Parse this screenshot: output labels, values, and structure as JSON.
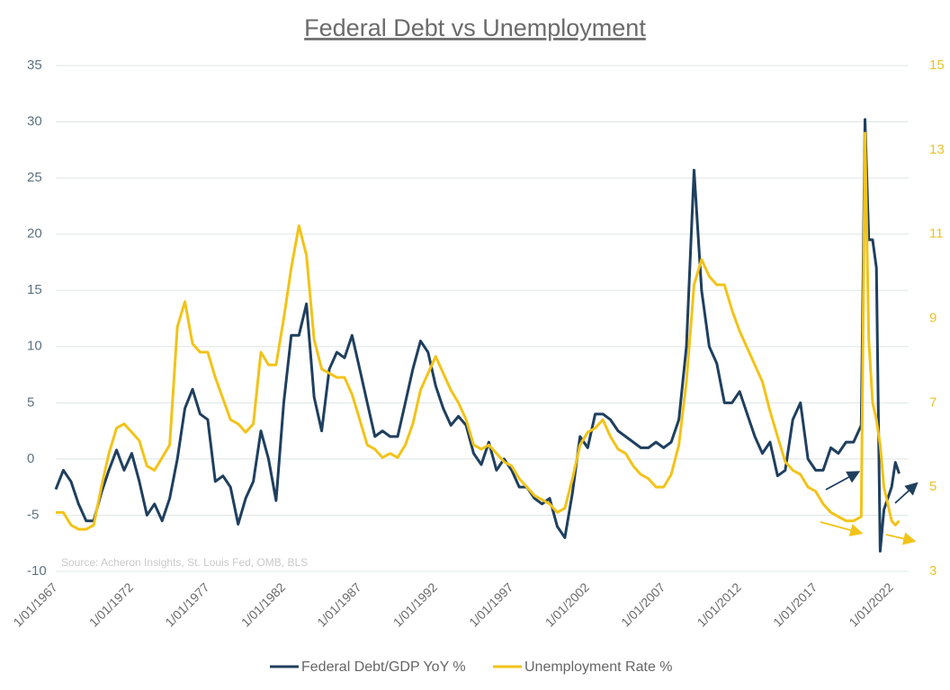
{
  "chart_data": {
    "type": "line",
    "title": "Federal Debt vs Unemployment",
    "annotation": "Source: Acheron Insights, St. Louis Fed, OMB, BLS",
    "x": [
      "1967-01-01",
      "1967-07-01",
      "1968-01-01",
      "1968-07-01",
      "1969-01-01",
      "1969-07-01",
      "1970-01-01",
      "1970-07-01",
      "1971-01-01",
      "1971-07-01",
      "1972-01-01",
      "1972-07-01",
      "1973-01-01",
      "1973-07-01",
      "1974-01-01",
      "1974-07-01",
      "1975-01-01",
      "1975-07-01",
      "1976-01-01",
      "1976-07-01",
      "1977-01-01",
      "1977-07-01",
      "1978-01-01",
      "1978-07-01",
      "1979-01-01",
      "1979-07-01",
      "1980-01-01",
      "1980-07-01",
      "1981-01-01",
      "1981-07-01",
      "1982-01-01",
      "1982-07-01",
      "1983-01-01",
      "1983-07-01",
      "1984-01-01",
      "1984-07-01",
      "1985-01-01",
      "1985-07-01",
      "1986-01-01",
      "1986-07-01",
      "1987-01-01",
      "1987-07-01",
      "1988-01-01",
      "1988-07-01",
      "1989-01-01",
      "1989-07-01",
      "1990-01-01",
      "1990-07-01",
      "1991-01-01",
      "1991-07-01",
      "1992-01-01",
      "1992-07-01",
      "1993-01-01",
      "1993-07-01",
      "1994-01-01",
      "1994-07-01",
      "1995-01-01",
      "1995-07-01",
      "1996-01-01",
      "1996-07-01",
      "1997-01-01",
      "1997-07-01",
      "1998-01-01",
      "1998-07-01",
      "1999-01-01",
      "1999-07-01",
      "2000-01-01",
      "2000-07-01",
      "2001-01-01",
      "2001-07-01",
      "2002-01-01",
      "2002-07-01",
      "2003-01-01",
      "2003-07-01",
      "2004-01-01",
      "2004-07-01",
      "2005-01-01",
      "2005-07-01",
      "2006-01-01",
      "2006-07-01",
      "2007-01-01",
      "2007-07-01",
      "2008-01-01",
      "2008-07-01",
      "2009-01-01",
      "2009-07-01",
      "2010-01-01",
      "2010-07-01",
      "2011-01-01",
      "2011-07-01",
      "2012-01-01",
      "2012-07-01",
      "2013-01-01",
      "2013-07-01",
      "2014-01-01",
      "2014-07-01",
      "2015-01-01",
      "2015-07-01",
      "2016-01-01",
      "2016-07-01",
      "2017-01-01",
      "2017-07-01",
      "2018-01-01",
      "2018-07-01",
      "2019-01-01",
      "2019-07-01",
      "2020-01-01",
      "2020-04-01",
      "2020-07-01",
      "2020-10-01",
      "2021-01-01",
      "2021-04-01",
      "2021-07-01",
      "2022-01-01",
      "2022-04-01",
      "2022-07-01"
    ],
    "series": [
      {
        "name": "Federal Debt/GDP YoY %",
        "color": "#1f3f5f",
        "axis": "y",
        "values": [
          -2.7,
          -1,
          -2,
          -4,
          -5.5,
          -5.5,
          -3,
          -1,
          0.8,
          -1,
          0.5,
          -2,
          -5,
          -4,
          -5.5,
          -3.5,
          0,
          4.5,
          6.2,
          4,
          3.5,
          -2,
          -1.5,
          -2.5,
          -5.8,
          -3.5,
          -2,
          2.5,
          0,
          -3.7,
          5,
          11,
          11,
          13.8,
          5.5,
          2.5,
          8,
          9.5,
          9,
          11,
          8,
          5,
          2,
          2.5,
          2,
          2,
          5,
          8,
          10.5,
          9.5,
          6.5,
          4.5,
          3,
          3.8,
          3,
          0.5,
          -0.5,
          1.5,
          -1,
          0,
          -1,
          -2.5,
          -2.5,
          -3.5,
          -4,
          -3.5,
          -6,
          -7,
          -3,
          2,
          1,
          4,
          4,
          3.5,
          2.5,
          2,
          1.5,
          1,
          1,
          1.5,
          1,
          1.5,
          3.5,
          10,
          25.7,
          15,
          10,
          8.5,
          5,
          5,
          6,
          4,
          2,
          0.5,
          1.5,
          -1.5,
          -1,
          3.5,
          5,
          0,
          -1,
          -1,
          1,
          0.5,
          1.5,
          1.5,
          3,
          30.2,
          19.5,
          19.5,
          17,
          -8.2,
          -4.5,
          -2.5,
          -0.3,
          -1.3
        ]
      },
      {
        "name": "Unemployment Rate %",
        "color": "#f2c318",
        "axis": "y2",
        "values": [
          4.4,
          4.4,
          4.1,
          4.0,
          4.0,
          4.1,
          5.0,
          5.8,
          6.4,
          6.5,
          6.3,
          6.1,
          5.5,
          5.4,
          5.7,
          6.0,
          8.8,
          9.4,
          8.4,
          8.2,
          8.2,
          7.6,
          7.1,
          6.6,
          6.5,
          6.3,
          6.5,
          8.2,
          7.9,
          7.9,
          9.0,
          10.2,
          11.2,
          10.5,
          8.5,
          7.8,
          7.7,
          7.6,
          7.6,
          7.2,
          6.6,
          6.0,
          5.9,
          5.7,
          5.8,
          5.7,
          6.0,
          6.5,
          7.3,
          7.7,
          8.1,
          7.7,
          7.3,
          7.0,
          6.6,
          6.0,
          5.9,
          6.0,
          5.8,
          5.6,
          5.5,
          5.2,
          5.0,
          4.8,
          4.7,
          4.6,
          4.4,
          4.5,
          5.2,
          6.0,
          6.3,
          6.4,
          6.6,
          6.2,
          5.9,
          5.8,
          5.5,
          5.3,
          5.2,
          5.0,
          5.0,
          5.3,
          6.0,
          7.5,
          9.8,
          10.4,
          10.0,
          9.8,
          9.8,
          9.2,
          8.7,
          8.3,
          7.9,
          7.5,
          6.8,
          6.2,
          5.6,
          5.4,
          5.3,
          5.0,
          4.9,
          4.6,
          4.4,
          4.3,
          4.2,
          4.2,
          4.3,
          13.4,
          8.5,
          7.0,
          6.6,
          6.0,
          5.0,
          4.2,
          4.1,
          4.2
        ]
      }
    ],
    "xlim": [
      "1967-01-01",
      "2023-01-01"
    ],
    "xticks": [
      {
        "value": "1967-01-01",
        "label": "1/01/1967"
      },
      {
        "value": "1972-01-01",
        "label": "1/01/1972"
      },
      {
        "value": "1977-01-01",
        "label": "1/01/1977"
      },
      {
        "value": "1982-01-01",
        "label": "1/01/1982"
      },
      {
        "value": "1987-01-01",
        "label": "1/01/1987"
      },
      {
        "value": "1992-01-01",
        "label": "1/01/1992"
      },
      {
        "value": "1997-01-01",
        "label": "1/01/1997"
      },
      {
        "value": "2002-01-01",
        "label": "1/01/2002"
      },
      {
        "value": "2007-01-01",
        "label": "1/01/2007"
      },
      {
        "value": "2012-01-01",
        "label": "1/01/2012"
      },
      {
        "value": "2017-01-01",
        "label": "1/01/2017"
      },
      {
        "value": "2022-01-01",
        "label": "1/01/2022"
      }
    ],
    "ylim": [
      -10,
      35
    ],
    "yticks": [
      -10,
      -5,
      0,
      5,
      10,
      15,
      20,
      25,
      30,
      35
    ],
    "y2lim": [
      3,
      15
    ],
    "y2ticks": [
      3,
      5,
      7,
      9,
      11,
      13,
      15
    ],
    "grid": true
  }
}
